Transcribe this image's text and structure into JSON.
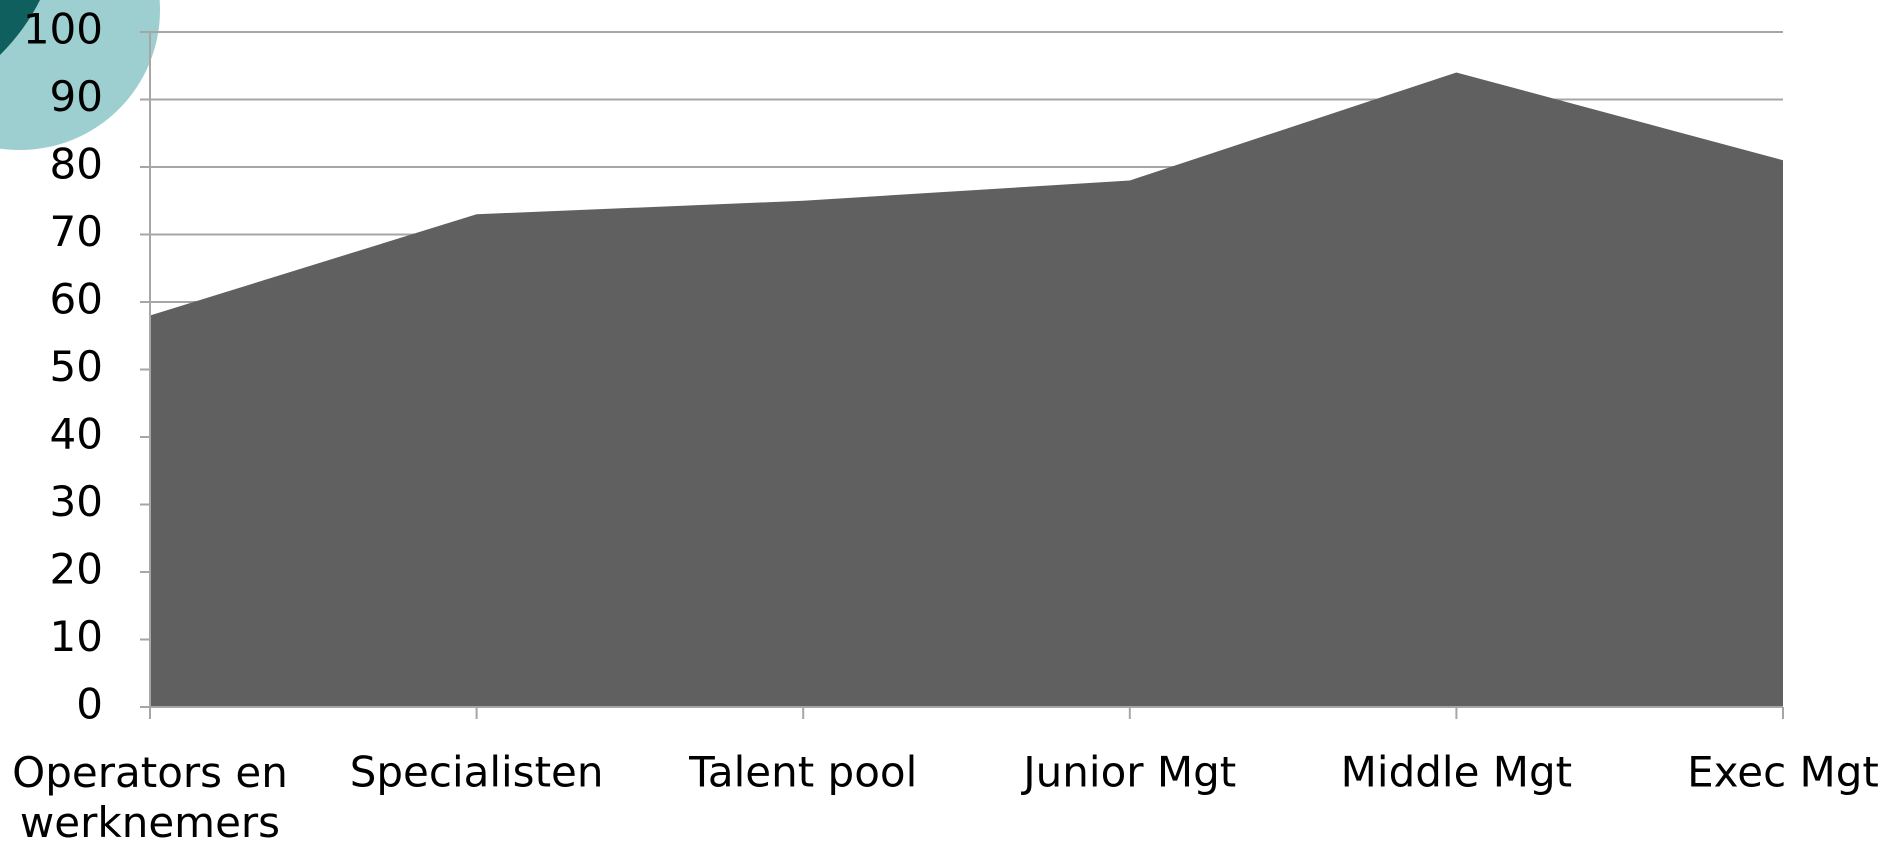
{
  "chart_data": {
    "type": "area",
    "categories": [
      "Operators en werknemers",
      "Specialisten",
      "Talent pool",
      "Junior Mgt",
      "Middle Mgt",
      "Exec Mgt"
    ],
    "values": [
      58,
      73,
      75,
      78,
      94,
      81
    ],
    "color": "#606060",
    "ylim": [
      0,
      100
    ],
    "yticks": [
      0,
      10,
      20,
      30,
      40,
      50,
      60,
      70,
      80,
      90,
      100
    ],
    "grid": true
  }
}
